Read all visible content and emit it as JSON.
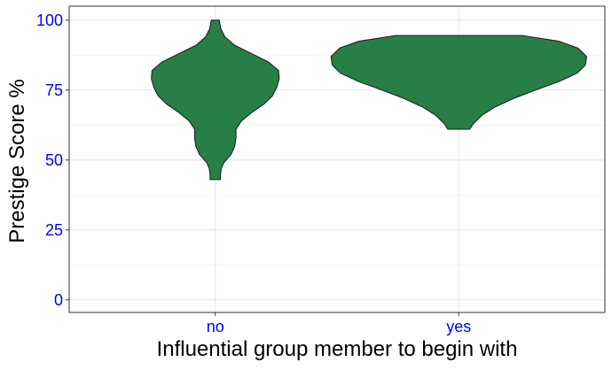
{
  "chart_data": {
    "type": "violin",
    "title": "",
    "xlabel": "Influential group member to begin with",
    "ylabel": "Prestige Score %",
    "categories": [
      "no",
      "yes"
    ],
    "y_ticks": [
      0,
      25,
      50,
      75,
      100
    ],
    "ylim": [
      -4.5,
      105
    ],
    "grid": true,
    "fill_color": "#277E47",
    "outline_color": "#1a1a1a",
    "tick_label_color": "#0000FF",
    "violins": [
      {
        "category": "no",
        "min": 43,
        "max": 100,
        "profile": [
          {
            "y": 43,
            "half_width": 0.043
          },
          {
            "y": 45,
            "half_width": 0.043
          },
          {
            "y": 47,
            "half_width": 0.05
          },
          {
            "y": 49,
            "half_width": 0.07
          },
          {
            "y": 52,
            "half_width": 0.13
          },
          {
            "y": 55,
            "half_width": 0.16
          },
          {
            "y": 58,
            "half_width": 0.17
          },
          {
            "y": 61,
            "half_width": 0.17
          },
          {
            "y": 64,
            "half_width": 0.215
          },
          {
            "y": 67,
            "half_width": 0.3
          },
          {
            "y": 70,
            "half_width": 0.4
          },
          {
            "y": 73,
            "half_width": 0.47
          },
          {
            "y": 76,
            "half_width": 0.505
          },
          {
            "y": 79,
            "half_width": 0.525
          },
          {
            "y": 82,
            "half_width": 0.52
          },
          {
            "y": 85,
            "half_width": 0.44
          },
          {
            "y": 88,
            "half_width": 0.3
          },
          {
            "y": 91,
            "half_width": 0.16
          },
          {
            "y": 94,
            "half_width": 0.08
          },
          {
            "y": 97,
            "half_width": 0.045
          },
          {
            "y": 100,
            "half_width": 0.033
          }
        ]
      },
      {
        "category": "yes",
        "min": 61,
        "max": 94.5,
        "profile": [
          {
            "y": 61,
            "half_width": 0.09
          },
          {
            "y": 63,
            "half_width": 0.12
          },
          {
            "y": 66,
            "half_width": 0.19
          },
          {
            "y": 69,
            "half_width": 0.3
          },
          {
            "y": 72,
            "half_width": 0.45
          },
          {
            "y": 75,
            "half_width": 0.63
          },
          {
            "y": 78,
            "half_width": 0.82
          },
          {
            "y": 81,
            "half_width": 0.97
          },
          {
            "y": 84,
            "half_width": 1.04
          },
          {
            "y": 87,
            "half_width": 1.05
          },
          {
            "y": 90,
            "half_width": 0.98
          },
          {
            "y": 92.5,
            "half_width": 0.82
          },
          {
            "y": 94.5,
            "half_width": 0.52
          }
        ]
      }
    ]
  }
}
